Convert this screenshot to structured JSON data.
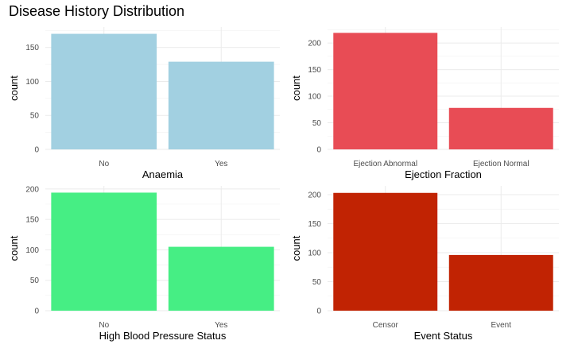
{
  "title": "Disease History Distribution",
  "chart_data": [
    {
      "type": "bar",
      "categories": [
        "No",
        "Yes"
      ],
      "values": [
        170,
        129
      ],
      "xlabel": "Anaemia",
      "ylabel": "count",
      "ylim": [
        0,
        180
      ],
      "yticks": [
        0,
        50,
        100,
        150
      ],
      "color": "#A2D0E1",
      "grid": true
    },
    {
      "type": "bar",
      "categories": [
        "Ejection Abnormal",
        "Ejection Normal"
      ],
      "values": [
        219,
        78
      ],
      "xlabel": "Ejection Fraction",
      "ylabel": "count",
      "ylim": [
        0,
        230
      ],
      "yticks": [
        0,
        50,
        100,
        150,
        200
      ],
      "color": "#E84C55",
      "grid": true
    },
    {
      "type": "bar",
      "categories": [
        "No",
        "Yes"
      ],
      "values": [
        194,
        105
      ],
      "xlabel": "High Blood Pressure Status",
      "ylabel": "count",
      "ylim": [
        0,
        205
      ],
      "yticks": [
        0,
        50,
        100,
        150,
        200
      ],
      "color": "#46EE84",
      "grid": true
    },
    {
      "type": "bar",
      "categories": [
        "Censor",
        "Event"
      ],
      "values": [
        203,
        96
      ],
      "xlabel": "Event Status",
      "ylabel": "count",
      "ylim": [
        0,
        215
      ],
      "yticks": [
        0,
        50,
        100,
        150,
        200
      ],
      "color": "#C12303",
      "grid": true
    }
  ]
}
